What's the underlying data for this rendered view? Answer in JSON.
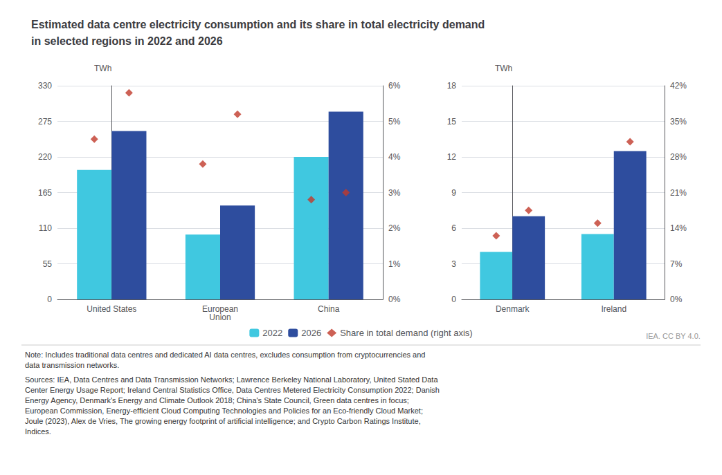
{
  "title": "Estimated data centre electricity consumption and its share in total electricity demand\nin selected regions in 2022 and 2026",
  "annotations": [
    "Note: Includes traditional data centres and dedicated AI data centres, excludes consumption from cryptocurrencies and\ndata transmission networks.",
    "Sources: IEA, Data Centres and Data Transmission Networks; Lawrence Berkeley National Laboratory, United Stated Data\nCenter Energy Usage Report; Ireland Central Statistics Office, Data Centres Metered Electricity Consumption 2022; Danish\nEnergy Agency, Denmark's Energy and Climate Outlook 2018; China's State Council, Green data centres in focus;\nEuropean Commission, Energy-efficient Cloud Computing Technologies and Policies for an Eco-friendly Cloud Market;\nJoule (2023), Alex de Vries, The growing energy footprint of artificial intelligence; and Crypto Carbon Ratings Institute,\nIndices.",
    "IEA. CC BY 4.0."
  ],
  "chart_data": [
    {
      "type": "bar",
      "categories": [
        "United States",
        "European\nUnion",
        "China"
      ],
      "series": [
        {
          "name": "2022",
          "type": "bar",
          "color": "#40c8e0",
          "values": [
            200,
            100,
            220
          ]
        },
        {
          "name": "2026",
          "type": "bar",
          "color": "#2e4d9e",
          "values": [
            260,
            145,
            290
          ]
        },
        {
          "name": "Share in total demand (right axis)",
          "type": "scatter",
          "axis": "y2",
          "marker": "diamond",
          "color": "#c0392b",
          "values": [
            4.5,
            3.8,
            2.8
          ]
        },
        {
          "name": "Share in total demand (right axis)",
          "type": "scatter",
          "axis": "y2",
          "marker": "diamond",
          "color": "#c0392b",
          "values": [
            5.8,
            5.2,
            3.0
          ]
        }
      ],
      "ylabel": "TWh",
      "ylim": [
        0,
        330
      ],
      "yticks": [
        0,
        55,
        110,
        165,
        220,
        275,
        330
      ],
      "y2lim": [
        0,
        6
      ],
      "y2ticks": [
        {
          "value": 0,
          "label": "0%"
        },
        {
          "value": 1,
          "label": "1%"
        },
        {
          "value": 2,
          "label": "2%"
        },
        {
          "value": 3,
          "label": "3%"
        },
        {
          "value": 4,
          "label": "4%"
        },
        {
          "value": 5,
          "label": "5%"
        },
        {
          "value": 6,
          "label": "6%"
        }
      ],
      "grid": true,
      "legend": "bottom"
    },
    {
      "type": "bar",
      "categories": [
        "Denmark",
        "Ireland"
      ],
      "series": [
        {
          "name": "2022",
          "type": "bar",
          "color": "#40c8e0",
          "values": [
            4.0,
            5.5
          ]
        },
        {
          "name": "2026",
          "type": "bar",
          "color": "#2e4d9e",
          "values": [
            7.0,
            12.5
          ]
        },
        {
          "name": "Share in total demand (right axis)",
          "type": "scatter",
          "axis": "y2",
          "marker": "diamond",
          "color": "#c0392b",
          "values": [
            12.5,
            15.0
          ]
        },
        {
          "name": "Share in total demand (right axis)",
          "type": "scatter",
          "axis": "y2",
          "marker": "diamond",
          "color": "#c0392b",
          "values": [
            17.5,
            31.0
          ]
        }
      ],
      "ylabel": "TWh",
      "ylim": [
        0,
        18
      ],
      "yticks": [
        0,
        3,
        6,
        9,
        12,
        15,
        18
      ],
      "y2lim": [
        0,
        42
      ],
      "y2ticks": [
        {
          "value": 0,
          "label": "0%"
        },
        {
          "value": 7,
          "label": "7%"
        },
        {
          "value": 14,
          "label": "14%"
        },
        {
          "value": 21,
          "label": "21%"
        },
        {
          "value": 28,
          "label": "28%"
        },
        {
          "value": 35,
          "label": "35%"
        },
        {
          "value": 42,
          "label": "42%"
        }
      ],
      "grid": true,
      "legend": "bottom"
    }
  ]
}
